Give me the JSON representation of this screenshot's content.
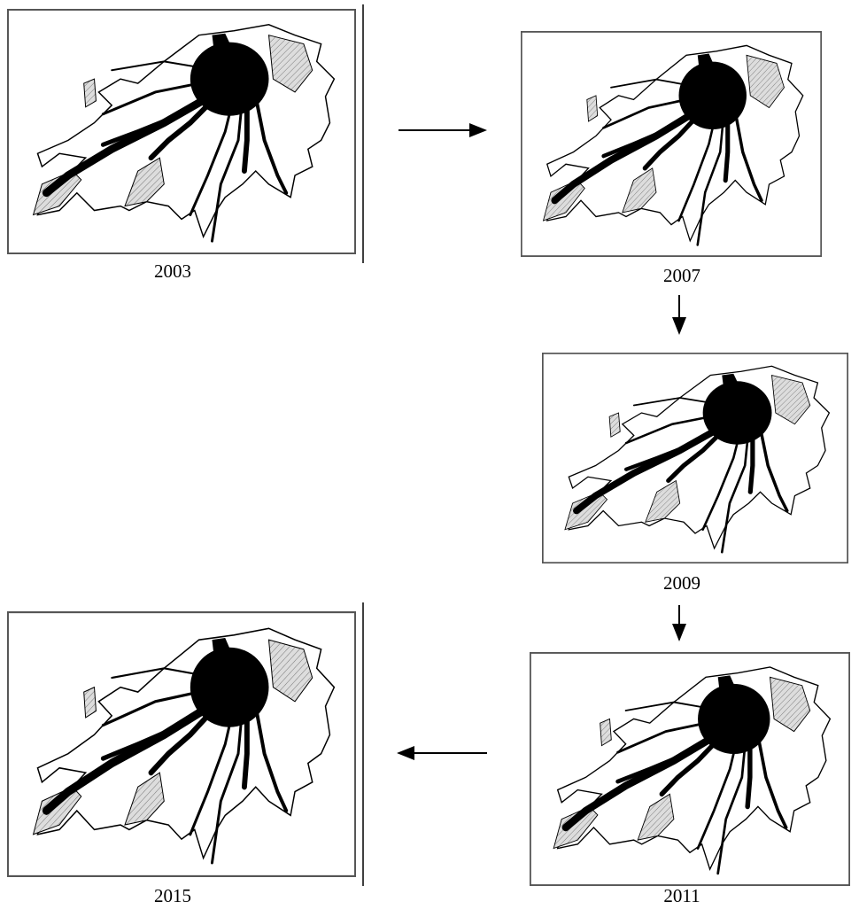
{
  "panels": [
    {
      "label": "2003"
    },
    {
      "label": "2007"
    },
    {
      "label": "2009"
    },
    {
      "label": "2011"
    },
    {
      "label": "2015"
    }
  ]
}
